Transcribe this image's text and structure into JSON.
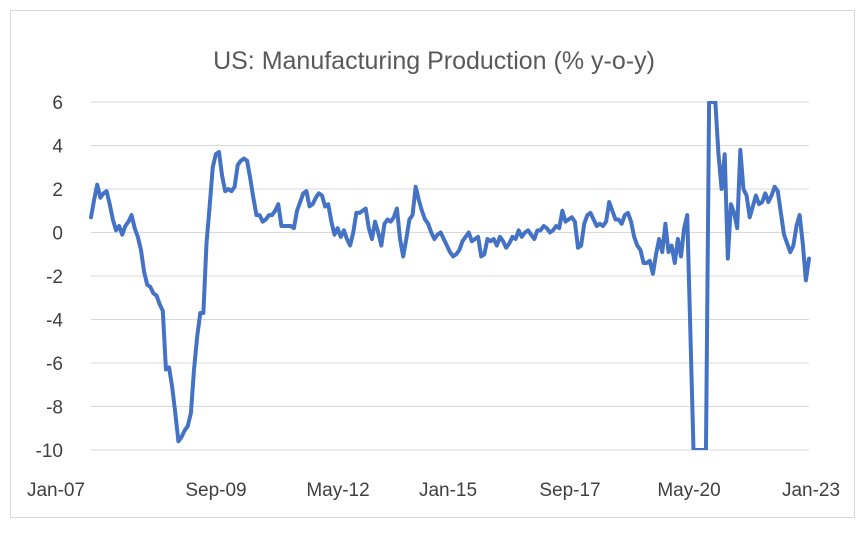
{
  "chart_data": {
    "type": "line",
    "title": "US: Manufacturing Production (% y-o-y)",
    "xlabel": "",
    "ylabel": "",
    "ylim": [
      -10,
      6
    ],
    "yticks": [
      6,
      4,
      2,
      0,
      -2,
      -4,
      -6,
      -8,
      -10
    ],
    "x_start": "Jan-07",
    "x_end": "Jan-23",
    "xticks": [
      "Jan-07",
      "Sep-09",
      "May-12",
      "Jan-15",
      "Sep-17",
      "May-20",
      "Jan-23"
    ],
    "grid": true,
    "legend": "none",
    "line_color": "#4472c4",
    "series": [
      {
        "name": "Manufacturing Production % y-o-y",
        "values": [
          0.7,
          1.5,
          2.2,
          1.6,
          1.8,
          1.9,
          1.3,
          0.6,
          0.1,
          0.3,
          -0.1,
          0.3,
          0.5,
          0.8,
          0.2,
          -0.2,
          -0.8,
          -1.8,
          -2.4,
          -2.5,
          -2.8,
          -2.9,
          -3.3,
          -3.6,
          -6.3,
          -6.2,
          -7.1,
          -8.3,
          -9.6,
          -9.4,
          -9.1,
          -8.9,
          -8.3,
          -6.3,
          -4.8,
          -3.7,
          -3.7,
          -0.5,
          1.2,
          3.0,
          3.6,
          3.7,
          2.6,
          1.9,
          2.0,
          1.9,
          2.1,
          3.1,
          3.3,
          3.4,
          3.3,
          2.5,
          1.6,
          0.8,
          0.8,
          0.5,
          0.6,
          0.8,
          0.8,
          1.0,
          1.3,
          0.3,
          0.3,
          0.3,
          0.3,
          0.2,
          1.0,
          1.4,
          1.8,
          1.9,
          1.2,
          1.3,
          1.6,
          1.8,
          1.7,
          1.2,
          1.3,
          0.5,
          -0.1,
          0.2,
          -0.2,
          0.1,
          -0.3,
          -0.6,
          0.0,
          0.9,
          0.9,
          1.0,
          1.1,
          0.2,
          -0.3,
          0.5,
          0.0,
          -0.6,
          0.4,
          0.6,
          0.5,
          0.7,
          1.1,
          -0.3,
          -1.1,
          -0.3,
          0.6,
          0.8,
          2.1,
          1.5,
          1.0,
          0.6,
          0.4,
          0.0,
          -0.3,
          -0.1,
          0.0,
          -0.3,
          -0.6,
          -0.9,
          -1.1,
          -1.0,
          -0.8,
          -0.4,
          -0.2,
          0.0,
          -0.4,
          -0.3,
          -0.2,
          -1.1,
          -1.0,
          -0.3,
          -0.4,
          -0.3,
          -0.6,
          -0.2,
          -0.4,
          -0.7,
          -0.5,
          -0.2,
          -0.3,
          0.1,
          -0.2,
          0.0,
          0.1,
          -0.1,
          -0.3,
          0.1,
          0.1,
          0.3,
          0.2,
          0.0,
          0.1,
          0.3,
          0.2,
          1.0,
          0.5,
          0.6,
          0.7,
          0.5,
          -0.7,
          -0.6,
          0.4,
          0.8,
          0.9,
          0.6,
          0.3,
          0.4,
          0.3,
          0.5,
          1.4,
          1.0,
          0.6,
          0.6,
          0.4,
          0.8,
          0.9,
          0.5,
          -0.2,
          -0.6,
          -0.8,
          -1.4,
          -1.4,
          -1.3,
          -1.9,
          -1.0,
          -0.3,
          -0.9,
          0.4,
          -0.9,
          -0.6,
          -1.4,
          -0.3,
          -1.1,
          0.2,
          0.8,
          -4.6,
          -10.0,
          -10.0,
          -10.0,
          -10.0,
          -10.0,
          6.0,
          6.0,
          6.0,
          3.6,
          2.0,
          3.6,
          -1.2,
          1.3,
          0.9,
          0.2,
          3.8,
          2.0,
          1.7,
          0.7,
          1.2,
          1.7,
          1.3,
          1.4,
          1.8,
          1.4,
          1.7,
          2.1,
          1.9,
          0.9,
          -0.1,
          -0.5,
          -0.9,
          -0.6,
          0.3,
          0.8,
          -0.5,
          -2.2,
          -1.2
        ]
      }
    ]
  }
}
